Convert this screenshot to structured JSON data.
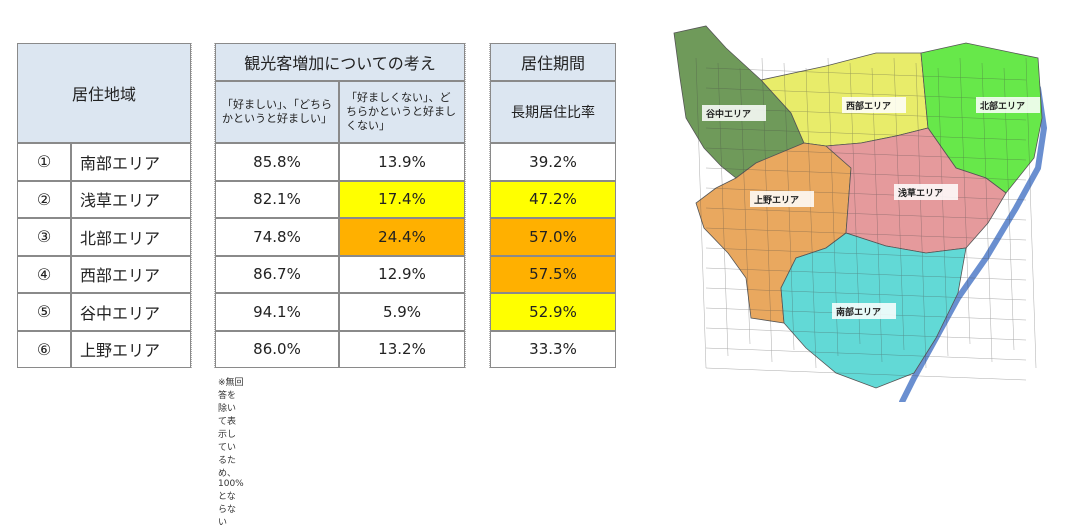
{
  "table": {
    "header_region": "居住地域",
    "header_tourism": "観光客増加についての考え",
    "header_residence": "居住期間",
    "sub_favorable": "「好ましい」、「どちらかというと好ましい」",
    "sub_unfavorable": "「好ましくない」、どちらかというと好ましくない」",
    "sub_longterm": "長期居住比率",
    "rows": [
      {
        "num": "①",
        "name": "南部エリア",
        "fav": "85.8%",
        "unfav": "13.9%",
        "long": "39.2%",
        "unfav_color": "#ffffff",
        "long_color": "#ffffff"
      },
      {
        "num": "②",
        "name": "浅草エリア",
        "fav": "82.1%",
        "unfav": "17.4%",
        "long": "47.2%",
        "unfav_color": "#ffff00",
        "long_color": "#ffff00"
      },
      {
        "num": "③",
        "name": "北部エリア",
        "fav": "74.8%",
        "unfav": "24.4%",
        "long": "57.0%",
        "unfav_color": "#ffb000",
        "long_color": "#ffb000"
      },
      {
        "num": "④",
        "name": "西部エリア",
        "fav": "86.7%",
        "unfav": "12.9%",
        "long": "57.5%",
        "unfav_color": "#ffffff",
        "long_color": "#ffb000"
      },
      {
        "num": "⑤",
        "name": "谷中エリア",
        "fav": "94.1%",
        "unfav": "5.9%",
        "long": "52.9%",
        "unfav_color": "#ffffff",
        "long_color": "#ffff00"
      },
      {
        "num": "⑥",
        "name": "上野エリア",
        "fav": "86.0%",
        "unfav": "13.2%",
        "long": "33.3%",
        "unfav_color": "#ffffff",
        "long_color": "#ffffff"
      }
    ],
    "note": "※無回答を除いて表示しているため、100%とならない"
  },
  "map": {
    "labels": {
      "yanaka": "谷中エリア",
      "seibu": "西部エリア",
      "hokubu": "北部エリア",
      "ueno": "上野エリア",
      "asakusa": "浅草エリア",
      "nanbu": "南部エリア"
    },
    "colors": {
      "yanaka": "#6f9a5a",
      "seibu": "#e8ec6a",
      "hokubu": "#67e84a",
      "ueno": "#e9a85f",
      "asakusa": "#e59a9c",
      "nanbu": "#62d9d6",
      "river": "#6a8fd0"
    }
  }
}
